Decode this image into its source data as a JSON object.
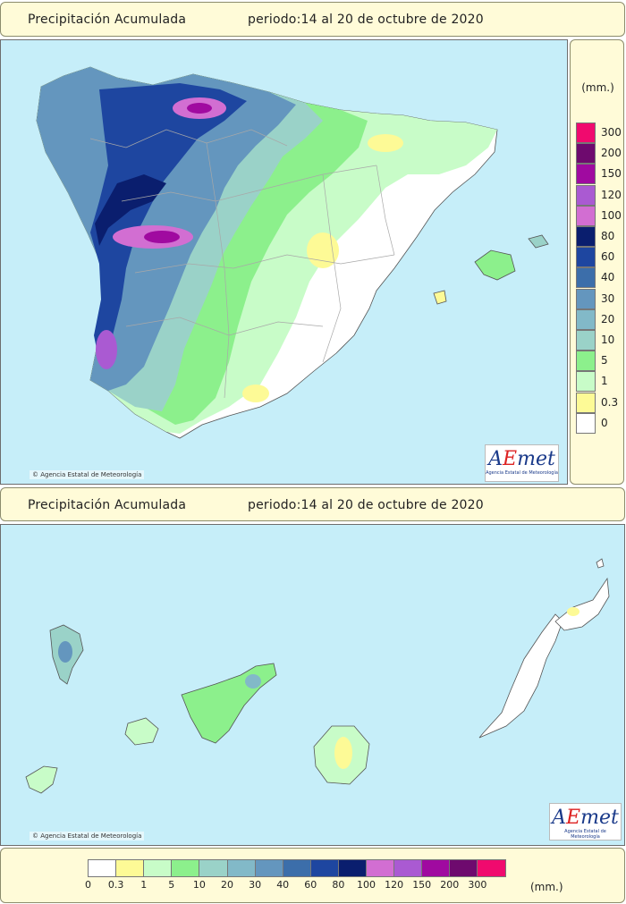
{
  "top_header": {
    "title": "Precipitación Acumulada",
    "period": "periodo:14 al 20 de octubre de 2020"
  },
  "bottom_header": {
    "title": "Precipitación Acumulada",
    "period": "periodo:14 al 20 de octubre de 2020"
  },
  "copyright": "Agencia Estatal de Meteorología",
  "logo": {
    "wordmark": "AEmet",
    "subtitle": "Agencia Estatal de Meteorología"
  },
  "legend": {
    "unit": "(mm.)",
    "classes": [
      {
        "label": "0",
        "color": "#ffffff"
      },
      {
        "label": "0.3",
        "color": "#fdfa96"
      },
      {
        "label": "1",
        "color": "#c8fcc8"
      },
      {
        "label": "5",
        "color": "#8cf08c"
      },
      {
        "label": "10",
        "color": "#9ad2c8"
      },
      {
        "label": "20",
        "color": "#82b9c8"
      },
      {
        "label": "30",
        "color": "#6496be"
      },
      {
        "label": "40",
        "color": "#3c6eaa"
      },
      {
        "label": "60",
        "color": "#1e46a0"
      },
      {
        "label": "80",
        "color": "#0a1e6e"
      },
      {
        "label": "100",
        "color": "#d26ed2"
      },
      {
        "label": "120",
        "color": "#aa5ad2"
      },
      {
        "label": "150",
        "color": "#a00aa0"
      },
      {
        "label": "200",
        "color": "#6e0a6e"
      },
      {
        "label": "300",
        "color": "#f00a6e"
      }
    ]
  }
}
